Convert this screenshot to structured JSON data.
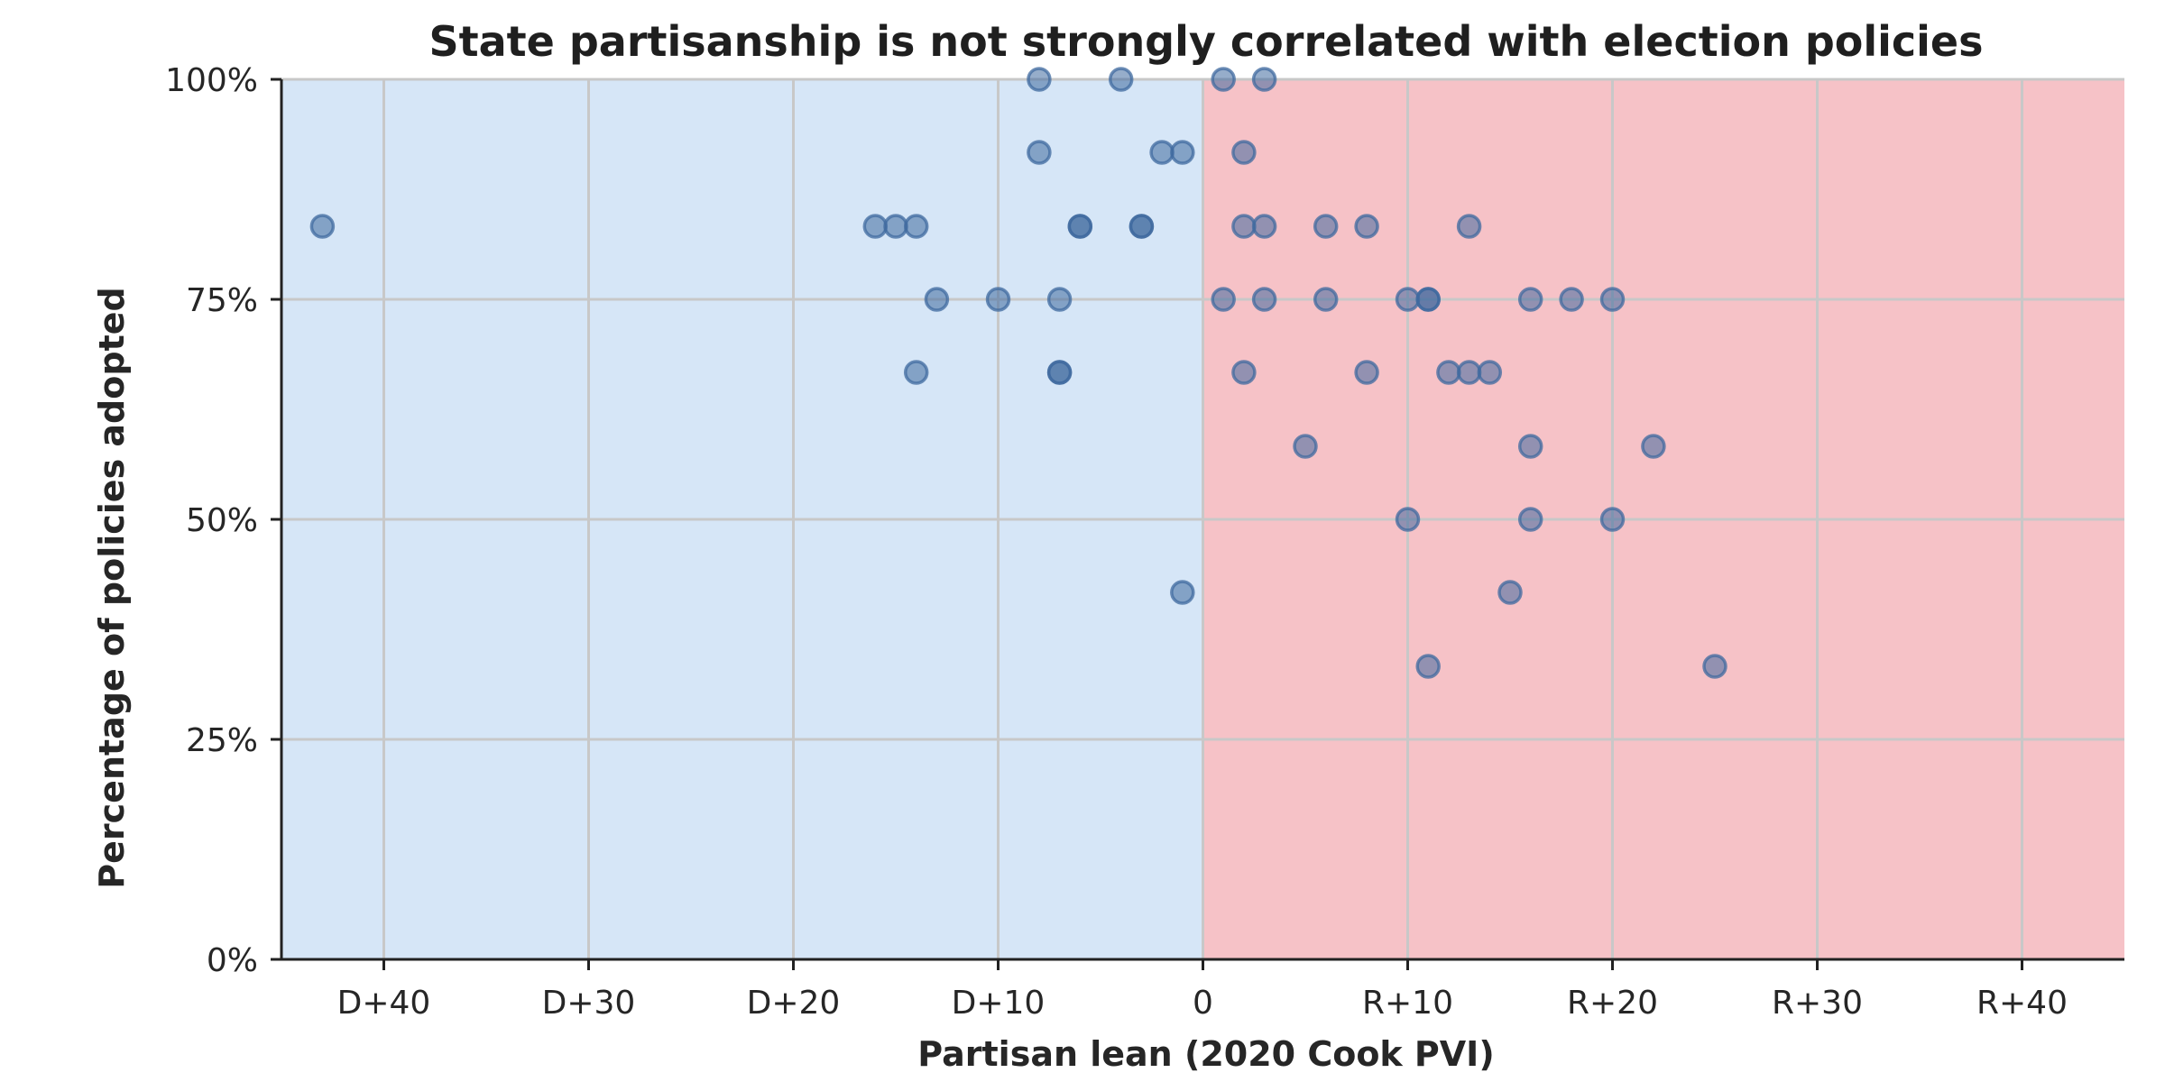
{
  "chart_data": {
    "type": "scatter",
    "title": "State partisanship is not strongly correlated with election policies",
    "xlabel": "Partisan lean (2020 Cook PVI)",
    "ylabel": "Percentage of policies adopted",
    "xlim": [
      -45,
      45
    ],
    "ylim": [
      0,
      100
    ],
    "x_ticks": [
      {
        "value": -40,
        "label": "D+40"
      },
      {
        "value": -30,
        "label": "D+30"
      },
      {
        "value": -20,
        "label": "D+20"
      },
      {
        "value": -10,
        "label": "D+10"
      },
      {
        "value": 0,
        "label": "0"
      },
      {
        "value": 10,
        "label": "R+10"
      },
      {
        "value": 20,
        "label": "R+20"
      },
      {
        "value": 30,
        "label": "R+30"
      },
      {
        "value": 40,
        "label": "R+40"
      }
    ],
    "y_ticks": [
      {
        "value": 0,
        "label": "0%"
      },
      {
        "value": 25,
        "label": "25%"
      },
      {
        "value": 50,
        "label": "50%"
      },
      {
        "value": 75,
        "label": "75%"
      },
      {
        "value": 100,
        "label": "100%"
      }
    ],
    "grid": true,
    "background_regions": [
      {
        "from": -45,
        "to": 0,
        "color": "#d6e6f7"
      },
      {
        "from": 0,
        "to": 45,
        "color": "#f6c2c7"
      }
    ],
    "point_color": "#3f6a9f",
    "points": [
      {
        "x": -43,
        "y": 83.3
      },
      {
        "x": -16,
        "y": 83.3
      },
      {
        "x": -15,
        "y": 83.3
      },
      {
        "x": -14,
        "y": 83.3
      },
      {
        "x": -6,
        "y": 83.3
      },
      {
        "x": -6,
        "y": 83.3
      },
      {
        "x": -3,
        "y": 83.3
      },
      {
        "x": -3,
        "y": 83.3
      },
      {
        "x": -8,
        "y": 100
      },
      {
        "x": -4,
        "y": 100
      },
      {
        "x": 1,
        "y": 100
      },
      {
        "x": 3,
        "y": 100
      },
      {
        "x": -8,
        "y": 91.7
      },
      {
        "x": -2,
        "y": 91.7
      },
      {
        "x": -1,
        "y": 91.7
      },
      {
        "x": 2,
        "y": 91.7
      },
      {
        "x": 2,
        "y": 83.3
      },
      {
        "x": 3,
        "y": 83.3
      },
      {
        "x": 6,
        "y": 83.3
      },
      {
        "x": 8,
        "y": 83.3
      },
      {
        "x": 13,
        "y": 83.3
      },
      {
        "x": -13,
        "y": 75
      },
      {
        "x": -10,
        "y": 75
      },
      {
        "x": -7,
        "y": 75
      },
      {
        "x": 1,
        "y": 75
      },
      {
        "x": 3,
        "y": 75
      },
      {
        "x": 6,
        "y": 75
      },
      {
        "x": 10,
        "y": 75
      },
      {
        "x": 11,
        "y": 75
      },
      {
        "x": 11,
        "y": 75
      },
      {
        "x": 16,
        "y": 75
      },
      {
        "x": 18,
        "y": 75
      },
      {
        "x": 20,
        "y": 75
      },
      {
        "x": -14,
        "y": 66.7
      },
      {
        "x": -7,
        "y": 66.7
      },
      {
        "x": -7,
        "y": 66.7
      },
      {
        "x": 2,
        "y": 66.7
      },
      {
        "x": 8,
        "y": 66.7
      },
      {
        "x": 12,
        "y": 66.7
      },
      {
        "x": 13,
        "y": 66.7
      },
      {
        "x": 14,
        "y": 66.7
      },
      {
        "x": 5,
        "y": 58.3
      },
      {
        "x": 16,
        "y": 58.3
      },
      {
        "x": 22,
        "y": 58.3
      },
      {
        "x": 10,
        "y": 50
      },
      {
        "x": 16,
        "y": 50
      },
      {
        "x": 20,
        "y": 50
      },
      {
        "x": -1,
        "y": 41.7
      },
      {
        "x": 15,
        "y": 41.7
      },
      {
        "x": 11,
        "y": 33.3
      },
      {
        "x": 25,
        "y": 33.3
      }
    ]
  }
}
